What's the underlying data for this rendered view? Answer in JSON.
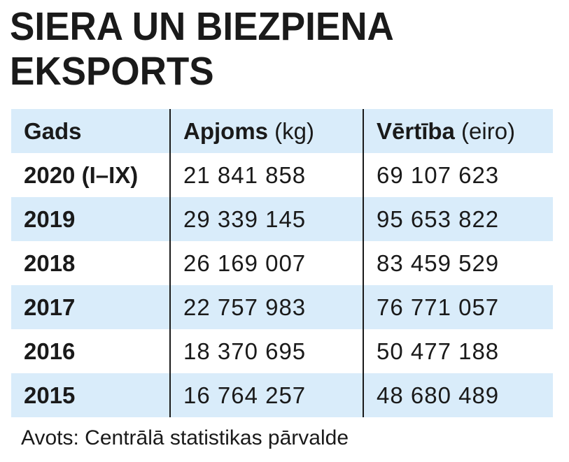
{
  "chart_data": {
    "type": "table",
    "title_line1": "SIERA UN BIEZPIENA",
    "title_line2": "EKSPORTS",
    "columns": [
      {
        "strong": "Gads",
        "light": ""
      },
      {
        "strong": "Apjoms",
        "light": " (kg)"
      },
      {
        "strong": "Vērtība",
        "light": " (eiro)"
      }
    ],
    "rows": [
      {
        "year": "2020 (I–IX)",
        "volume": "21 841 858",
        "value": "69 107 623"
      },
      {
        "year": "2019",
        "volume": "29 339 145",
        "value": "95 653 822"
      },
      {
        "year": "2018",
        "volume": "26 169 007",
        "value": "83 459 529"
      },
      {
        "year": "2017",
        "volume": "22 757 983",
        "value": "76 771 057"
      },
      {
        "year": "2016",
        "volume": "18 370 695",
        "value": "50 477 188"
      },
      {
        "year": "2015",
        "volume": "16 764 257",
        "value": "48 680 489"
      }
    ],
    "source": "Avots: Centrālā statistikas pārvalde",
    "colors": {
      "row_shade": "#d9ecfa",
      "text": "#1a1a1a",
      "divider": "#1a1a1a"
    }
  }
}
